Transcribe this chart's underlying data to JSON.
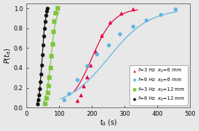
{
  "xlabel": "$\\it{t}_{\\rm d}$ (s)",
  "ylabel": "$P(t_{\\rm d})$",
  "xlim": [
    0,
    500
  ],
  "ylim": [
    0,
    1.05
  ],
  "xticks": [
    0,
    100,
    200,
    300,
    400,
    500
  ],
  "yticks": [
    0,
    0.2,
    0.4,
    0.6,
    0.8,
    1
  ],
  "series": [
    {
      "label": "$\\it{f}$=3 Hz  $\\it{x}_{0}$=6 mm",
      "color": "#e8003a",
      "marker": "^",
      "marker_size": 14,
      "scatter_x": [
        155,
        165,
        175,
        185,
        195,
        210,
        230,
        255,
        290,
        325
      ],
      "scatter_y": [
        0.07,
        0.13,
        0.22,
        0.31,
        0.43,
        0.57,
        0.73,
        0.86,
        0.95,
        0.99
      ],
      "curve_x_min": 145,
      "curve_x_max": 340,
      "curve_params": {
        "x0": 200,
        "k": 0.03
      }
    },
    {
      "label": "$\\it{f}$=6 Hz  $\\it{x}_{0}$=6 mm",
      "color": "#5ab4e5",
      "marker": "o",
      "marker_size": 14,
      "scatter_x": [
        115,
        130,
        155,
        185,
        215,
        250,
        285,
        325,
        365,
        410,
        455
      ],
      "scatter_y": [
        0.08,
        0.14,
        0.28,
        0.42,
        0.54,
        0.63,
        0.74,
        0.82,
        0.88,
        0.94,
        0.99
      ],
      "curve_x_min": 105,
      "curve_x_max": 460,
      "curve_params": {
        "x0": 250,
        "k": 0.016
      }
    },
    {
      "label": "$\\it{f}$=3 Hz  $\\it{x}_{0}$=12 mm",
      "color": "#7dc63b",
      "marker": "s",
      "marker_size": 14,
      "scatter_x": [
        58,
        62,
        65,
        68,
        71,
        74,
        77,
        80,
        83,
        86,
        90,
        95
      ],
      "scatter_y": [
        0.04,
        0.09,
        0.15,
        0.22,
        0.3,
        0.4,
        0.52,
        0.64,
        0.76,
        0.87,
        0.95,
        1.0
      ],
      "curve_x_min": 54,
      "curve_x_max": 100,
      "curve_params": {
        "x0": 75,
        "k": 0.13
      }
    },
    {
      "label": "$\\it{f}$=6 Hz  $\\it{x}_{0}$=12 mm",
      "color": "#111111",
      "marker": "o",
      "marker_size": 14,
      "scatter_x": [
        35,
        37,
        39,
        41,
        43,
        45,
        47,
        49,
        51,
        53,
        55,
        57,
        59,
        61,
        63
      ],
      "scatter_y": [
        0.04,
        0.08,
        0.13,
        0.19,
        0.26,
        0.34,
        0.43,
        0.53,
        0.63,
        0.72,
        0.8,
        0.87,
        0.93,
        0.97,
        1.0
      ],
      "curve_x_min": 33,
      "curve_x_max": 65,
      "curve_params": {
        "x0": 48,
        "k": 0.2
      }
    }
  ],
  "legend_entries": [
    {
      "label": "$\\it{f}$=3 Hz  $\\it{x}_{0}$=6 mm",
      "color": "#e8003a",
      "marker": "^"
    },
    {
      "label": "$\\it{f}$=6 Hz  $\\it{x}_{0}$=6 mm",
      "color": "#5ab4e5",
      "marker": "o"
    },
    {
      "label": "$\\it{f}$=3 Hz  $\\it{x}_{0}$=12 mm",
      "color": "#7dc63b",
      "marker": "s"
    },
    {
      "label": "$\\it{f}$=6 Hz  $\\it{x}_{0}$=12 mm",
      "color": "#111111",
      "marker": "o"
    }
  ],
  "figsize": [
    2.86,
    1.89
  ],
  "dpi": 100,
  "bg_color": "#e8e8e8"
}
